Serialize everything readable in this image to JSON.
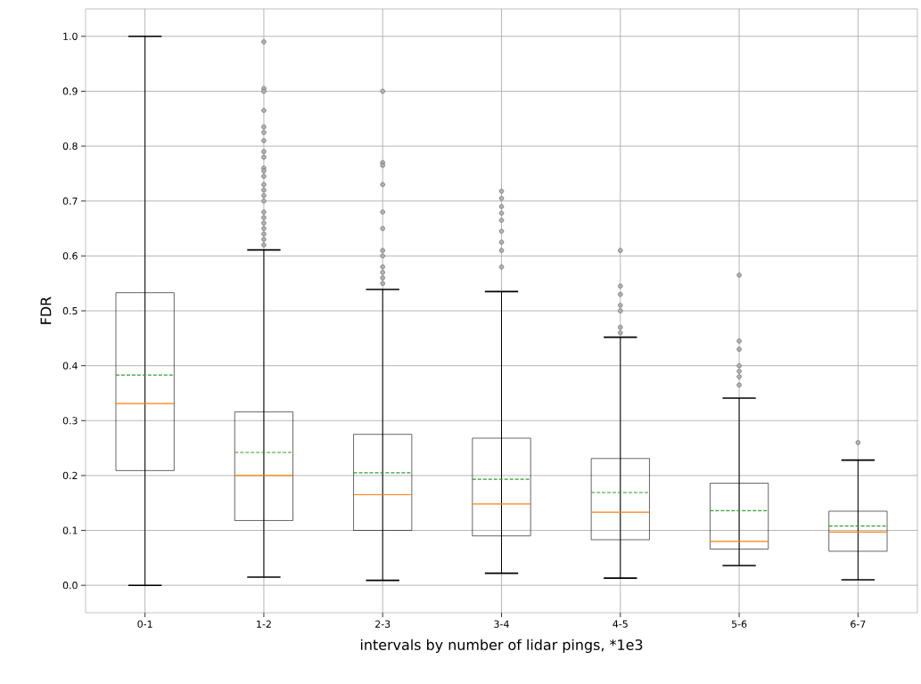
{
  "chart_data": {
    "type": "box",
    "xlabel": "intervals by number of lidar pings, *1e3",
    "ylabel": "FDR",
    "categories": [
      "0-1",
      "1-2",
      "2-3",
      "3-4",
      "4-5",
      "5-6",
      "6-7"
    ],
    "boxes": [
      {
        "low": 0.0,
        "q1": 0.209,
        "median": 0.331,
        "q3": 0.533,
        "high": 1.0,
        "mean": 0.383
      },
      {
        "low": 0.015,
        "q1": 0.118,
        "median": 0.2,
        "q3": 0.316,
        "high": 0.611,
        "mean": 0.242,
        "outliers": [
          0.99,
          0.905,
          0.9,
          0.865,
          0.835,
          0.825,
          0.81,
          0.79,
          0.78,
          0.76,
          0.755,
          0.745,
          0.73,
          0.72,
          0.71,
          0.7,
          0.68,
          0.67,
          0.66,
          0.65,
          0.64,
          0.63,
          0.62
        ]
      },
      {
        "low": 0.009,
        "q1": 0.1,
        "median": 0.165,
        "q3": 0.275,
        "high": 0.539,
        "mean": 0.205,
        "outliers": [
          0.9,
          0.77,
          0.765,
          0.73,
          0.68,
          0.65,
          0.61,
          0.6,
          0.58,
          0.57,
          0.56,
          0.55
        ]
      },
      {
        "low": 0.022,
        "q1": 0.09,
        "median": 0.148,
        "q3": 0.268,
        "high": 0.535,
        "mean": 0.193,
        "outliers": [
          0.718,
          0.705,
          0.69,
          0.678,
          0.665,
          0.645,
          0.625,
          0.61,
          0.58
        ]
      },
      {
        "low": 0.013,
        "q1": 0.083,
        "median": 0.133,
        "q3": 0.231,
        "high": 0.452,
        "mean": 0.169,
        "outliers": [
          0.61,
          0.545,
          0.53,
          0.51,
          0.5,
          0.47,
          0.46
        ]
      },
      {
        "low": 0.036,
        "q1": 0.066,
        "median": 0.08,
        "q3": 0.186,
        "high": 0.341,
        "mean": 0.136,
        "outliers": [
          0.565,
          0.445,
          0.43,
          0.4,
          0.39,
          0.38,
          0.365
        ]
      },
      {
        "low": 0.01,
        "q1": 0.062,
        "median": 0.097,
        "q3": 0.135,
        "high": 0.228,
        "mean": 0.108,
        "outliers": [
          0.26
        ]
      }
    ],
    "ylim": [
      -0.05,
      1.05
    ],
    "yticks": [
      {
        "value": 0,
        "label": "0.0"
      },
      {
        "value": 0.1,
        "label": "0.1"
      },
      {
        "value": 0.2,
        "label": "0.2"
      },
      {
        "value": 0.3,
        "label": "0.3"
      },
      {
        "value": 0.4,
        "label": "0.4"
      },
      {
        "value": 0.5,
        "label": "0.5"
      },
      {
        "value": 0.6,
        "label": "0.6"
      },
      {
        "value": 0.7,
        "label": "0.7"
      },
      {
        "value": 0.8,
        "label": "0.8"
      },
      {
        "value": 0.9,
        "label": "0.9"
      },
      {
        "value": 1.0,
        "label": "1.0"
      }
    ],
    "grid": true,
    "marker": "circle"
  }
}
